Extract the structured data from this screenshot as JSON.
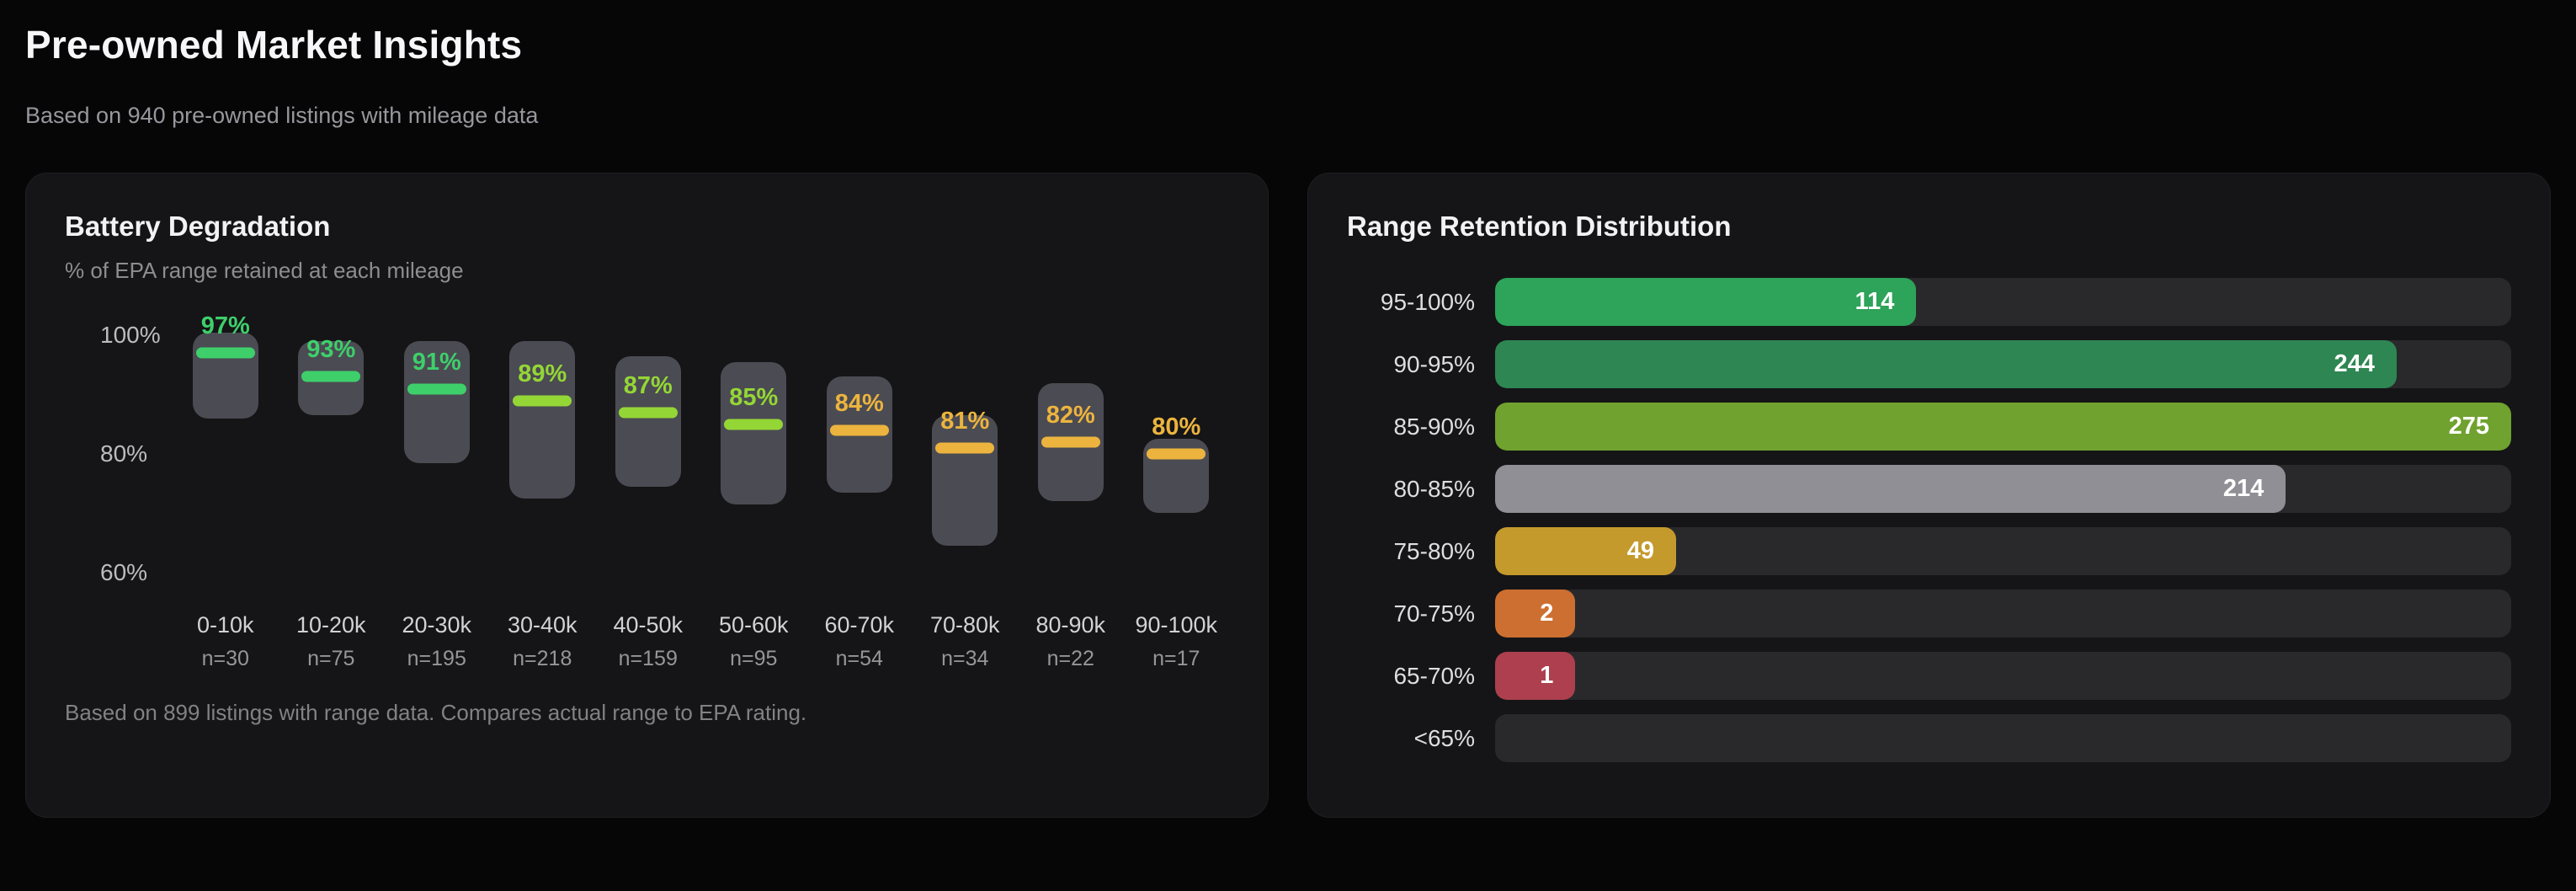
{
  "page": {
    "title": "Pre-owned Market Insights",
    "subtitle": "Based on 940 pre-owned listings with mileage data"
  },
  "battery_card": {
    "title": "Battery Degradation",
    "subtitle": "% of EPA range retained at each mileage",
    "footnote": "Based on 899 listings with range data. Compares actual range to EPA rating."
  },
  "range_card": {
    "title": "Range Retention Distribution"
  },
  "colors": {
    "page_background": "#060607",
    "card_background": "#151517",
    "box_fill": "#4b4b53",
    "track_fill": "#29292c",
    "green": "#3ecf6b",
    "lime": "#94d636",
    "amber": "#ecb43e"
  },
  "chart_data": [
    {
      "type": "boxrange",
      "title": "Battery Degradation",
      "subtitle": "% of EPA range retained at each mileage",
      "ylabel": "% of EPA range retained",
      "y_axis": {
        "top": 105,
        "bottom": 55,
        "ticks": [
          100,
          80,
          60
        ],
        "tick_labels": [
          "100%",
          "80%",
          "60%"
        ]
      },
      "grid": false,
      "categories": [
        "0-10k",
        "10-20k",
        "20-30k",
        "30-40k",
        "40-50k",
        "50-60k",
        "60-70k",
        "70-80k",
        "80-90k",
        "90-100k"
      ],
      "sample_sizes": [
        "n=30",
        "n=75",
        "n=195",
        "n=218",
        "n=159",
        "n=95",
        "n=54",
        "n=34",
        "n=22",
        "n=17"
      ],
      "series": [
        {
          "bucket": "0-10k",
          "n": 30,
          "label": "97%",
          "median_pct": 97,
          "range_high_pct": 100.5,
          "range_low_pct": 86.0,
          "color": "#3ecf6b"
        },
        {
          "bucket": "10-20k",
          "n": 75,
          "label": "93%",
          "median_pct": 93,
          "range_high_pct": 99.0,
          "range_low_pct": 86.5,
          "color": "#3ecf6b"
        },
        {
          "bucket": "20-30k",
          "n": 195,
          "label": "91%",
          "median_pct": 91,
          "range_high_pct": 99.0,
          "range_low_pct": 78.5,
          "color": "#3ecf6b"
        },
        {
          "bucket": "30-40k",
          "n": 218,
          "label": "89%",
          "median_pct": 89,
          "range_high_pct": 99.0,
          "range_low_pct": 72.5,
          "color": "#94d636"
        },
        {
          "bucket": "40-50k",
          "n": 159,
          "label": "87%",
          "median_pct": 87,
          "range_high_pct": 96.5,
          "range_low_pct": 74.5,
          "color": "#94d636"
        },
        {
          "bucket": "50-60k",
          "n": 95,
          "label": "85%",
          "median_pct": 85,
          "range_high_pct": 95.5,
          "range_low_pct": 71.5,
          "color": "#94d636"
        },
        {
          "bucket": "60-70k",
          "n": 54,
          "label": "84%",
          "median_pct": 84,
          "range_high_pct": 93.0,
          "range_low_pct": 73.5,
          "color": "#ecb43e"
        },
        {
          "bucket": "70-80k",
          "n": 34,
          "label": "81%",
          "median_pct": 81,
          "range_high_pct": 86.5,
          "range_low_pct": 64.5,
          "color": "#ecb43e"
        },
        {
          "bucket": "80-90k",
          "n": 22,
          "label": "82%",
          "median_pct": 82,
          "range_high_pct": 92.0,
          "range_low_pct": 72.0,
          "color": "#ecb43e"
        },
        {
          "bucket": "90-100k",
          "n": 17,
          "label": "80%",
          "median_pct": 80,
          "range_high_pct": 82.5,
          "range_low_pct": 70.0,
          "color": "#ecb43e"
        }
      ]
    },
    {
      "type": "bar",
      "orientation": "horizontal",
      "title": "Range Retention Distribution",
      "categories": [
        "95-100%",
        "90-95%",
        "85-90%",
        "80-85%",
        "75-80%",
        "70-75%",
        "65-70%",
        "<65%"
      ],
      "values": [
        114,
        244,
        275,
        214,
        49,
        2,
        1,
        0
      ],
      "colors": [
        "#2ea35a",
        "#2e8653",
        "#6fa22e",
        "#8f8f95",
        "#c59a2c",
        "#cd6f30",
        "#ae3f4e",
        null
      ],
      "xlim": [
        0,
        275
      ],
      "min_fill_pct": 7.9,
      "grid": false,
      "legend": false
    }
  ]
}
